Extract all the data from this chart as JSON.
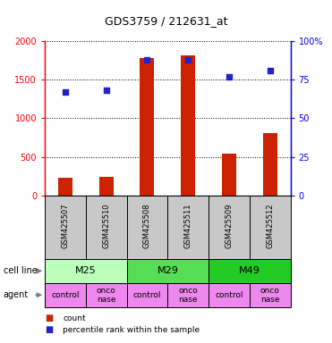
{
  "title": "GDS3759 / 212631_at",
  "samples": [
    "GSM425507",
    "GSM425510",
    "GSM425508",
    "GSM425511",
    "GSM425509",
    "GSM425512"
  ],
  "counts": [
    230,
    240,
    1780,
    1820,
    540,
    810
  ],
  "percentile_ranks": [
    67,
    68,
    88,
    88,
    77,
    81
  ],
  "cell_lines": [
    {
      "label": "M25",
      "span": [
        0,
        2
      ],
      "color": "#bbffbb"
    },
    {
      "label": "M29",
      "span": [
        2,
        4
      ],
      "color": "#55dd55"
    },
    {
      "label": "M49",
      "span": [
        4,
        6
      ],
      "color": "#22cc22"
    }
  ],
  "agents": [
    "control",
    "onconase",
    "control",
    "onconase",
    "control",
    "onconase"
  ],
  "agent_color": "#ee88ee",
  "bar_color": "#cc2200",
  "dot_color": "#2222cc",
  "sample_box_color": "#c8c8c8",
  "ylim_left": [
    0,
    2000
  ],
  "ylim_right": [
    0,
    100
  ],
  "yticks_left": [
    0,
    500,
    1000,
    1500,
    2000
  ],
  "ytick_labels_left": [
    "0",
    "500",
    "1000",
    "1500",
    "2000"
  ],
  "yticks_right": [
    0,
    25,
    50,
    75,
    100
  ],
  "ytick_labels_right": [
    "0",
    "25",
    "50",
    "75",
    "100%"
  ],
  "legend_items": [
    {
      "color": "#cc2200",
      "label": "count"
    },
    {
      "color": "#2222cc",
      "label": "percentile rank within the sample"
    }
  ],
  "bar_width": 0.35
}
